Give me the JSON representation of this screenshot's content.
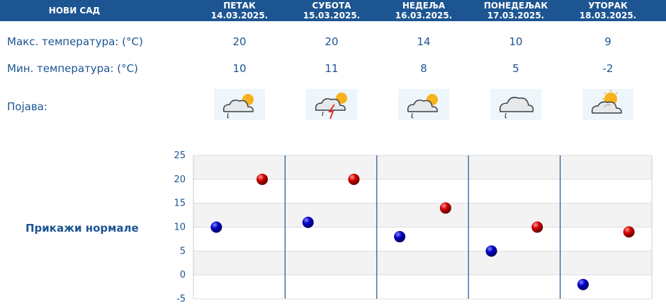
{
  "header": {
    "city": "НОВИ САД",
    "days": [
      {
        "name": "ПЕТАК",
        "date": "14.03.2025."
      },
      {
        "name": "СУБОТА",
        "date": "15.03.2025."
      },
      {
        "name": "НЕДЕЉА",
        "date": "16.03.2025."
      },
      {
        "name": "ПОНЕДЕЉАК",
        "date": "17.03.2025."
      },
      {
        "name": "УТОРАК",
        "date": "18.03.2025."
      }
    ]
  },
  "rows": {
    "max_label": "Макс. температура: (°C)",
    "min_label": "Мин. температура: (°C)",
    "phenomenon_label": "Појава:"
  },
  "max_temps": [
    "20",
    "20",
    "14",
    "10",
    "9"
  ],
  "min_temps": [
    "10",
    "11",
    "8",
    "5",
    "-2"
  ],
  "phenomena_icons": [
    "sun-cloud-rain-icon",
    "sun-cloud-thunder-icon",
    "sun-cloud-rain-icon",
    "cloud-rain-icon",
    "sun-cloud-icon"
  ],
  "show_normals_label": "Прикажи нормале",
  "chart_data": {
    "type": "scatter",
    "categories": [
      "ПЕТАК",
      "СУБОТА",
      "НЕДЕЉА",
      "ПОНЕДЕЉАК",
      "УТОРАК"
    ],
    "series": [
      {
        "values": [
          10,
          11,
          8,
          5,
          -2
        ],
        "color": "#0000c8"
      },
      {
        "values": [
          20,
          20,
          14,
          10,
          9
        ],
        "color": "#d40000"
      }
    ],
    "ylim": [
      -5,
      25
    ],
    "yticks": [
      "25",
      "20",
      "15",
      "10",
      "5",
      "0",
      "-5"
    ],
    "grid": true,
    "colors": {
      "min": "#0000c8",
      "max": "#d40000",
      "grid_band": "#f3f3f3",
      "divider": "#1c5592"
    }
  }
}
